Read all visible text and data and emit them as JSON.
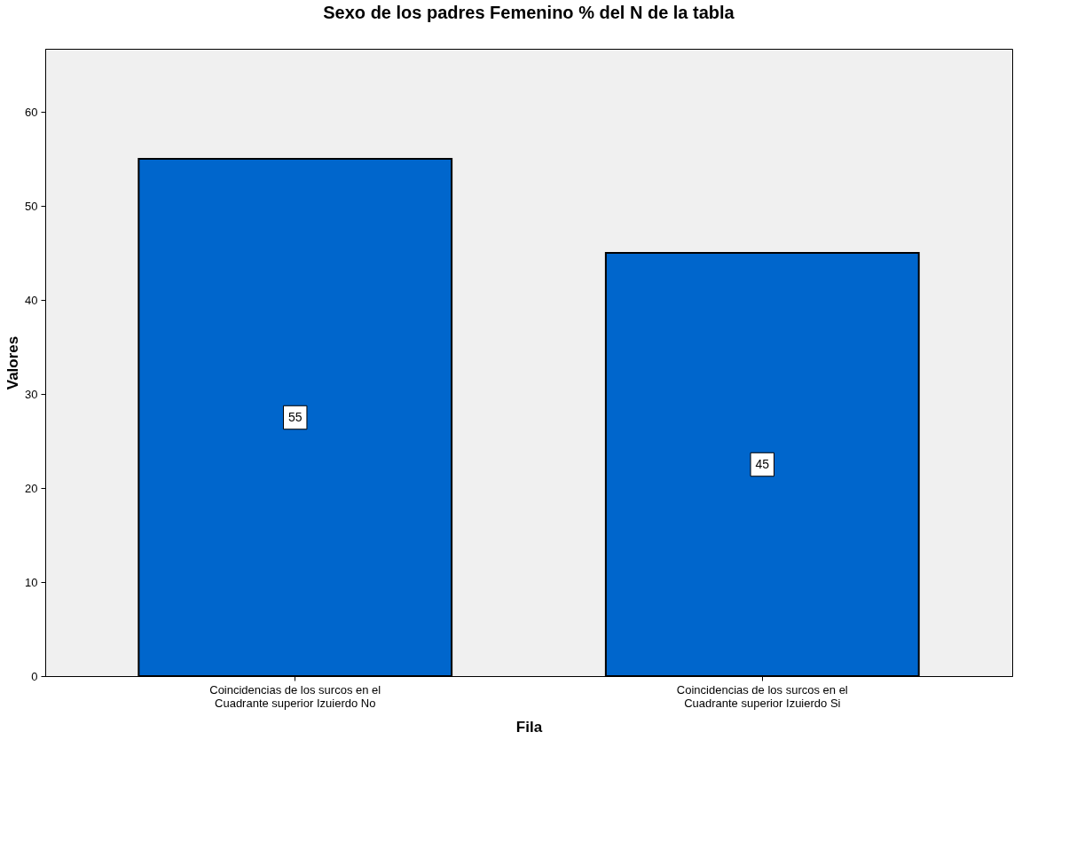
{
  "chart_data": {
    "type": "bar",
    "title": "Sexo de los padres Femenino % del N de la tabla",
    "xlabel": "Fila",
    "ylabel": "Valores",
    "categories": [
      "Coincidencias de los surcos en el Cuadrante superior Izuierdo No",
      "Coincidencias de los surcos en el Cuadrante superior Izuierdo Si"
    ],
    "values": [
      55,
      45
    ],
    "color": "#0066cc",
    "ylim": [
      0,
      66.7
    ],
    "yticks": [
      0,
      10,
      20,
      30,
      40,
      50,
      60
    ],
    "grid": false,
    "data_labels": true
  }
}
